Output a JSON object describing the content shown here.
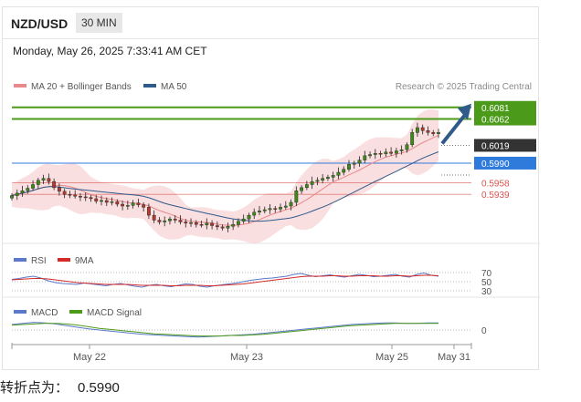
{
  "header": {
    "symbol": "NZD/USD",
    "timeframe": "30 MIN",
    "datetime": "Monday, May 26, 2025 7:33:41 AM CET"
  },
  "footer": {
    "label": "转折点为：",
    "value": "0.5990"
  },
  "chart_data": [
    {
      "type": "candlestick",
      "legend": [
        {
          "name": "MA 20 + Bollinger Bands",
          "color": "#e8888a"
        },
        {
          "name": "MA 50",
          "color": "#2f5a8a"
        }
      ],
      "credit": "Research © 2025 Trading Central",
      "levels": [
        {
          "value": 0.6081,
          "label": "0.6081",
          "color": "#4c9a1a",
          "style": "box"
        },
        {
          "value": 0.6062,
          "label": "0.6062",
          "color": "#4c9a1a",
          "style": "box"
        },
        {
          "value": 0.6019,
          "label": "0.6019",
          "color": "#333333",
          "style": "box"
        },
        {
          "value": 0.599,
          "label": "0.5990",
          "color": "#2f7bdc",
          "style": "box"
        },
        {
          "value": 0.5958,
          "label": "0.5958",
          "color": "#d9534f",
          "style": "text"
        },
        {
          "value": 0.5939,
          "label": "0.5939",
          "color": "#d9534f",
          "style": "text"
        }
      ],
      "x_ticks": [
        "May 22",
        "May 23",
        "May 25",
        "May 31"
      ],
      "close_series": [
        0.5937,
        0.5941,
        0.5945,
        0.5949,
        0.5955,
        0.5962,
        0.5965,
        0.596,
        0.595,
        0.5944,
        0.5939,
        0.5938,
        0.5936,
        0.5935,
        0.5934,
        0.5932,
        0.5928,
        0.5929,
        0.5926,
        0.5927,
        0.5923,
        0.592,
        0.5921,
        0.5925,
        0.5922,
        0.5918,
        0.5905,
        0.5897,
        0.5894,
        0.5896,
        0.5899,
        0.5897,
        0.5894,
        0.5892,
        0.5893,
        0.589,
        0.5889,
        0.5892,
        0.5888,
        0.5886,
        0.5884,
        0.5887,
        0.589,
        0.5895,
        0.5899,
        0.5905,
        0.591,
        0.5912,
        0.5914,
        0.5916,
        0.5915,
        0.5918,
        0.592,
        0.5926,
        0.5945,
        0.595,
        0.5955,
        0.596,
        0.5962,
        0.5965,
        0.5967,
        0.597,
        0.5975,
        0.598,
        0.5988,
        0.599,
        0.5995,
        0.6002,
        0.6004,
        0.6006,
        0.6005,
        0.6008,
        0.6006,
        0.601,
        0.6012,
        0.602,
        0.604,
        0.6048,
        0.6043,
        0.604,
        0.6038,
        0.604
      ],
      "y_range": [
        0.5865,
        0.61
      ]
    },
    {
      "type": "line",
      "title": "RSI",
      "legend": [
        {
          "name": "RSI",
          "color": "#5b79c9"
        },
        {
          "name": "9MA",
          "color": "#d42a2a"
        }
      ],
      "y_ticks": [
        "70",
        "50",
        "30"
      ],
      "series": [
        {
          "name": "RSI",
          "values": [
            55,
            57,
            60,
            62,
            58,
            52,
            48,
            46,
            45,
            44,
            47,
            45,
            43,
            41,
            44,
            46,
            43,
            40,
            38,
            42,
            44,
            41,
            39,
            42,
            45,
            44,
            40,
            38,
            41,
            43,
            45,
            47,
            50,
            53,
            55,
            57,
            58,
            60,
            62,
            66,
            68,
            64,
            61,
            63,
            65,
            62,
            60,
            63,
            66,
            64,
            61,
            62,
            64,
            66,
            62,
            60,
            66,
            69,
            64,
            62
          ]
        },
        {
          "name": "9MA",
          "values": [
            54,
            55,
            56,
            57,
            57,
            56,
            54,
            52,
            50,
            48,
            47,
            46,
            45,
            44,
            44,
            44,
            44,
            43,
            42,
            42,
            42,
            42,
            41,
            41,
            42,
            42,
            42,
            41,
            41,
            42,
            43,
            44,
            45,
            47,
            49,
            51,
            53,
            55,
            57,
            59,
            61,
            62,
            62,
            62,
            63,
            63,
            62,
            62,
            63,
            63,
            63,
            62,
            62,
            63,
            63,
            62,
            63,
            64,
            64,
            63
          ]
        }
      ]
    },
    {
      "type": "line",
      "title": "MACD",
      "legend": [
        {
          "name": "MACD",
          "color": "#5b79c9"
        },
        {
          "name": "MACD Signal",
          "color": "#4c9a1a"
        }
      ],
      "y_ticks": [
        "0"
      ],
      "series": [
        {
          "name": "MACD",
          "values": [
            10,
            12,
            14,
            13,
            11,
            8,
            5,
            2,
            0,
            -2,
            -4,
            -6,
            -8,
            -9,
            -10,
            -11,
            -12,
            -13,
            -12,
            -11,
            -10,
            -9,
            -8,
            -6,
            -4,
            -2,
            0,
            2,
            4,
            6,
            8,
            10,
            11,
            12,
            13,
            13,
            12,
            12,
            13,
            13
          ]
        },
        {
          "name": "MACD Signal",
          "values": [
            9,
            10,
            11,
            12,
            12,
            11,
            9,
            6,
            3,
            1,
            -1,
            -3,
            -5,
            -7,
            -8,
            -9,
            -10,
            -11,
            -11,
            -11,
            -10,
            -10,
            -9,
            -8,
            -6,
            -4,
            -2,
            0,
            2,
            4,
            6,
            8,
            9,
            10,
            11,
            12,
            12,
            12,
            12,
            12
          ]
        }
      ]
    }
  ]
}
